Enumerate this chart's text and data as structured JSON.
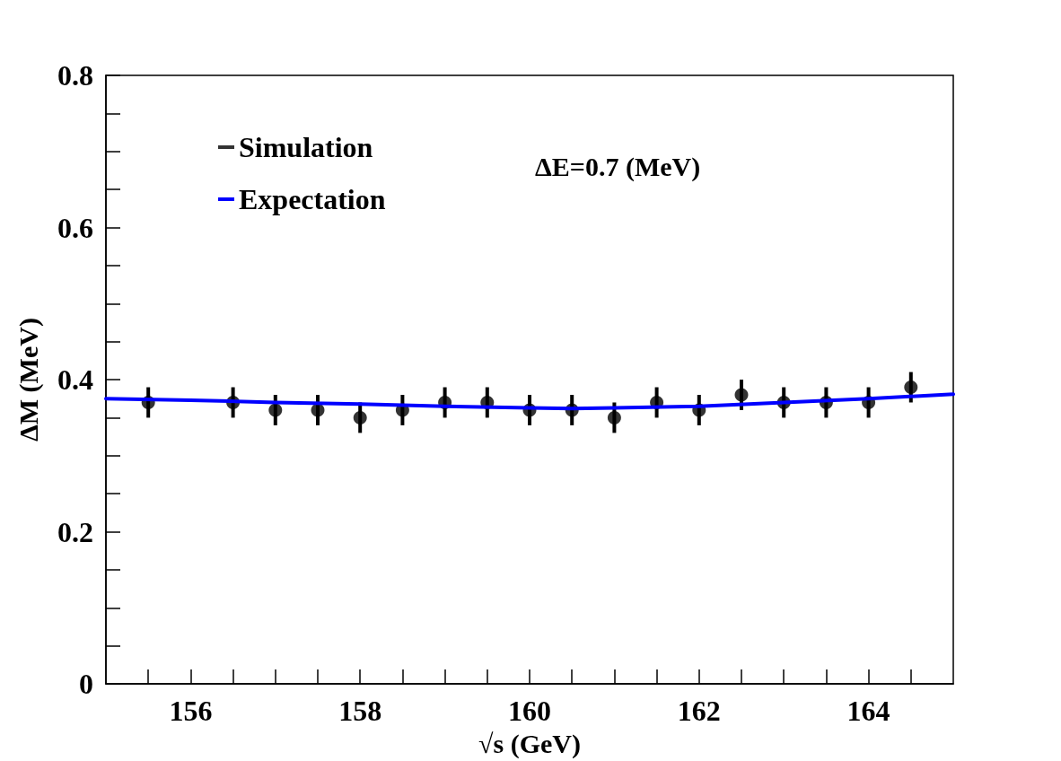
{
  "chart_data": {
    "type": "scatter",
    "xlabel": "√s (GeV)",
    "ylabel": "ΔM (MeV)",
    "annotations": [
      "ΔE=0.7 (MeV)"
    ],
    "xlim": [
      155,
      165
    ],
    "xticks": [
      {
        "value": 155.5,
        "label": null
      },
      156,
      {
        "value": 156.5,
        "label": null
      },
      {
        "value": 157,
        "label": null
      },
      {
        "value": 157.5,
        "label": null
      },
      158,
      {
        "value": 158.5,
        "label": null
      },
      {
        "value": 159,
        "label": null
      },
      {
        "value": 159.5,
        "label": null
      },
      160,
      {
        "value": 160.5,
        "label": null
      },
      {
        "value": 161,
        "label": null
      },
      {
        "value": 161.5,
        "label": null
      },
      162,
      {
        "value": 162.5,
        "label": null
      },
      {
        "value": 163,
        "label": null
      },
      {
        "value": 163.5,
        "label": null
      },
      164,
      {
        "value": 164.5,
        "label": null
      }
    ],
    "ylim": [
      0,
      0.8
    ],
    "yticks": [
      0,
      {
        "value": 0.05,
        "label": null
      },
      {
        "value": 0.1,
        "label": null
      },
      {
        "value": 0.15,
        "label": null
      },
      0.2,
      {
        "value": 0.25,
        "label": null
      },
      {
        "value": 0.3,
        "label": null
      },
      {
        "value": 0.35,
        "label": null
      },
      0.4,
      {
        "value": 0.45,
        "label": null
      },
      {
        "value": 0.5,
        "label": null
      },
      {
        "value": 0.55,
        "label": null
      },
      0.6,
      {
        "value": 0.65,
        "label": null
      },
      {
        "value": 0.7,
        "label": null
      },
      {
        "value": 0.75,
        "label": null
      },
      0.8
    ],
    "grid": false,
    "legend": "top left",
    "series": [
      {
        "name": "Simulation",
        "color": "#000000",
        "marker": "circle",
        "x": [
          155.5,
          156.5,
          157,
          157.5,
          158,
          158.5,
          159,
          159.5,
          160,
          160.5,
          161,
          161.5,
          162,
          162.5,
          163,
          163.5,
          164,
          164.5
        ],
        "values": [
          0.37,
          0.37,
          0.36,
          0.36,
          0.35,
          0.36,
          0.37,
          0.37,
          0.36,
          0.36,
          0.35,
          0.37,
          0.36,
          0.38,
          0.37,
          0.37,
          0.37,
          0.39
        ],
        "errors": [
          0.02,
          0.02,
          0.02,
          0.02,
          0.02,
          0.02,
          0.02,
          0.02,
          0.02,
          0.02,
          0.02,
          0.02,
          0.02,
          0.02,
          0.02,
          0.02,
          0.02,
          0.02
        ]
      },
      {
        "name": "Expectation",
        "type": "line",
        "color": "#0000ff",
        "marker": "none",
        "line_style": "solid",
        "x": [
          155,
          156,
          157,
          158,
          159,
          160,
          160.5,
          161,
          162,
          163,
          164,
          165
        ],
        "values": [
          0.375,
          0.373,
          0.37,
          0.368,
          0.365,
          0.363,
          0.362,
          0.363,
          0.365,
          0.37,
          0.375,
          0.381
        ]
      }
    ]
  }
}
